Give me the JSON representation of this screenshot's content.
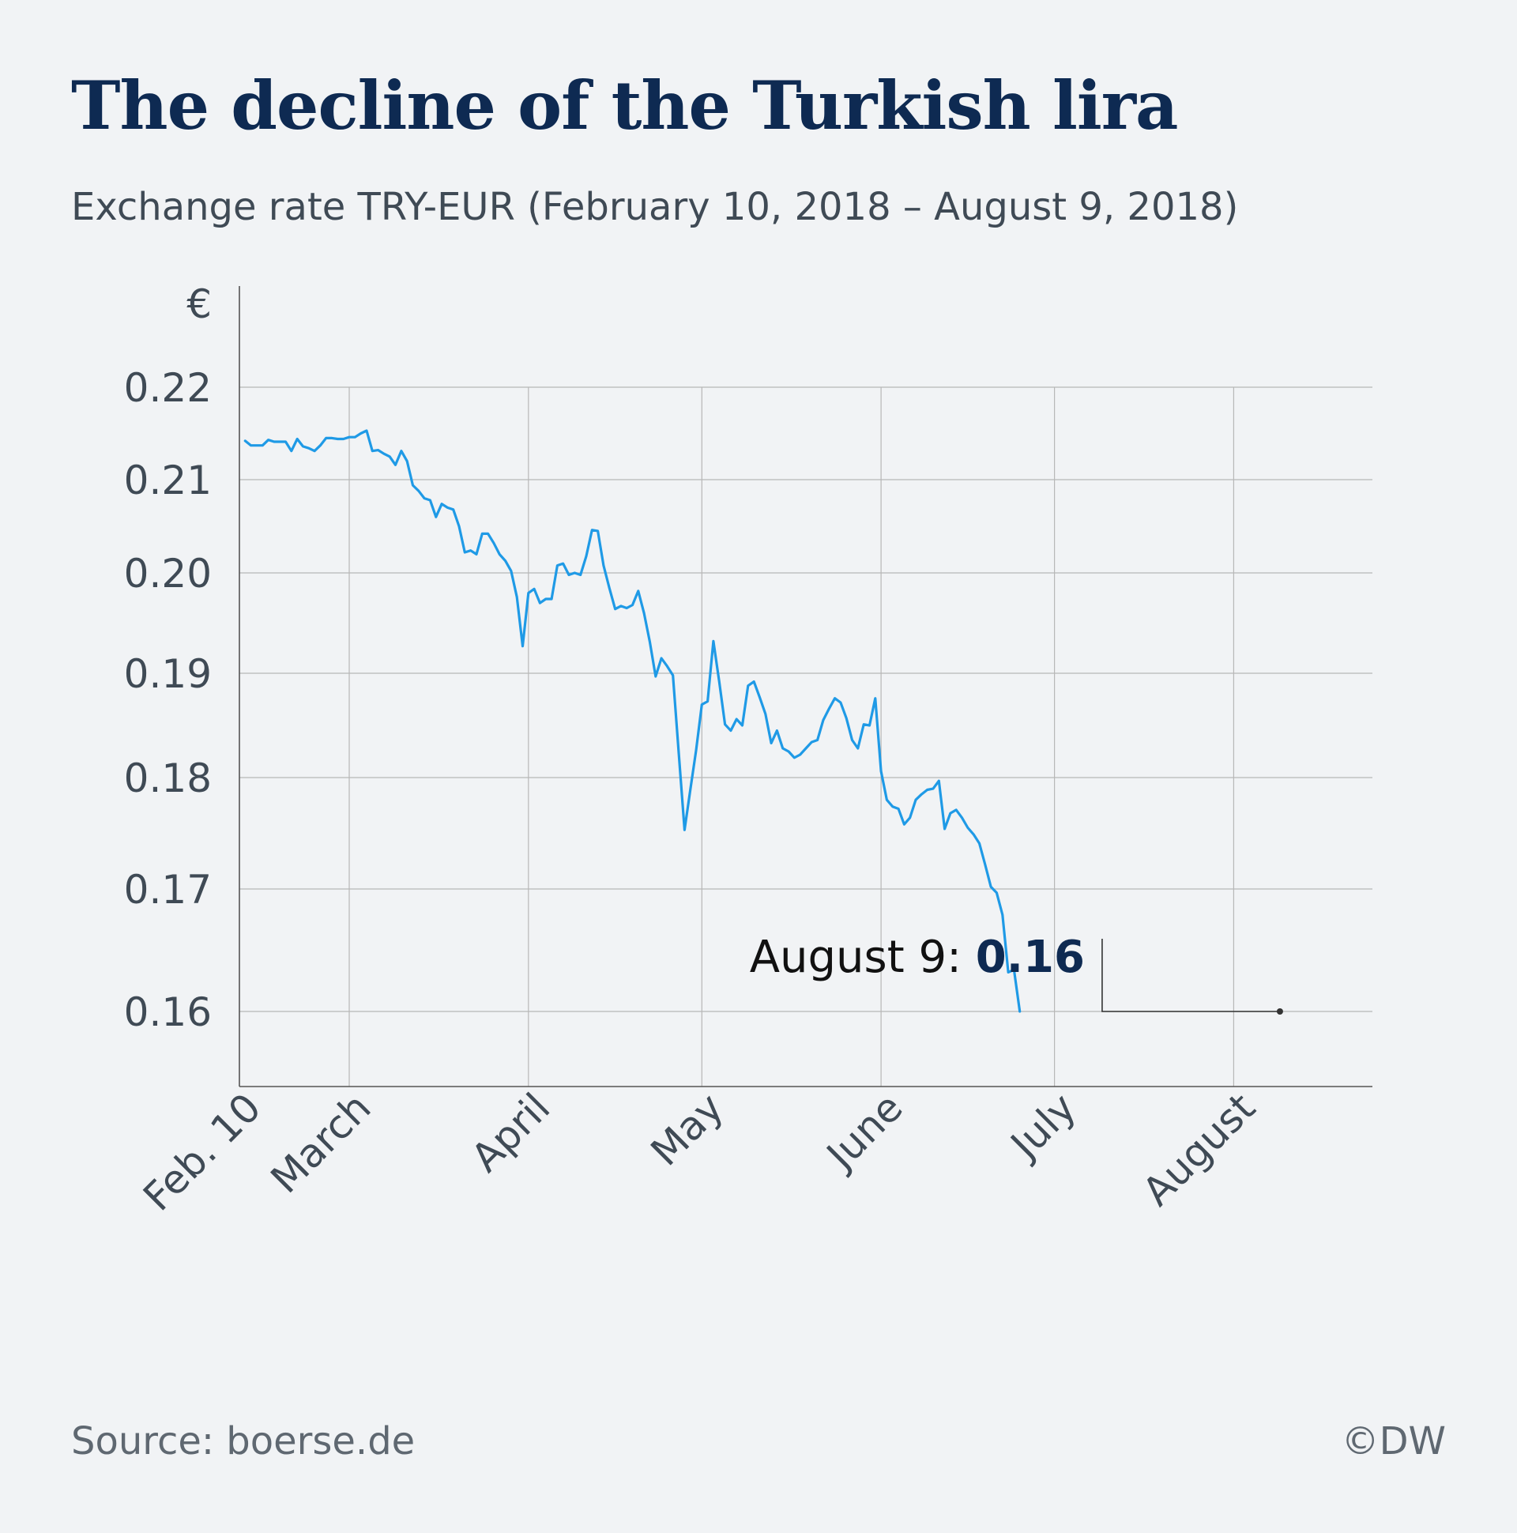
{
  "header": {
    "title": "The decline of the Turkish lira",
    "subtitle": "Exchange rate TRY-EUR (February 10, 2018 – August 9, 2018)"
  },
  "footer": {
    "source": "Source: boerse.de",
    "credit": "©DW"
  },
  "colors": {
    "line": "#1f9ae6",
    "title": "#0e2a52",
    "grid": "#b7b7b7",
    "axis": "#555555",
    "background": "#f1f3f5"
  },
  "chart_data": {
    "type": "line",
    "title": "The decline of the Turkish lira",
    "subtitle": "Exchange rate TRY-EUR (February 10, 2018 – August 9, 2018)",
    "y_unit_label": "€",
    "ylim": [
      0.154,
      0.226
    ],
    "y_ticks": [
      0.22,
      0.21,
      0.2,
      0.19,
      0.18,
      0.17,
      0.16
    ],
    "y_tick_labels": [
      "0.22",
      "0.21",
      "0.20",
      "0.19",
      "0.18",
      "0.17",
      "0.16"
    ],
    "xlim": [
      "2018-02-10",
      "2018-08-25"
    ],
    "x_ticks": [
      "2018-02-10",
      "2018-03-01",
      "2018-04-01",
      "2018-05-01",
      "2018-06-01",
      "2018-07-01",
      "2018-08-01"
    ],
    "x_tick_labels": [
      "Feb. 10",
      "March",
      "April",
      "May",
      "June",
      "July",
      "August"
    ],
    "grid": true,
    "series": [
      {
        "points": [
          [
            "2018-02-11",
            0.2142
          ],
          [
            "2018-02-12",
            0.2137
          ],
          [
            "2018-02-13",
            0.2137
          ],
          [
            "2018-02-14",
            0.2137
          ],
          [
            "2018-02-15",
            0.2143
          ],
          [
            "2018-02-16",
            0.2141
          ],
          [
            "2018-02-17",
            0.2141
          ],
          [
            "2018-02-18",
            0.2141
          ],
          [
            "2018-02-19",
            0.2131
          ],
          [
            "2018-02-20",
            0.2144
          ],
          [
            "2018-02-21",
            0.2136
          ],
          [
            "2018-02-22",
            0.2134
          ],
          [
            "2018-02-23",
            0.2131
          ],
          [
            "2018-02-24",
            0.2137
          ],
          [
            "2018-02-25",
            0.2145
          ],
          [
            "2018-02-26",
            0.2145
          ],
          [
            "2018-02-27",
            0.2144
          ],
          [
            "2018-02-28",
            0.2144
          ],
          [
            "2018-03-01",
            0.2146
          ],
          [
            "2018-03-02",
            0.2146
          ],
          [
            "2018-03-03",
            0.215
          ],
          [
            "2018-03-04",
            0.2153
          ],
          [
            "2018-03-05",
            0.2131
          ],
          [
            "2018-03-06",
            0.2132
          ],
          [
            "2018-03-07",
            0.2128
          ],
          [
            "2018-03-08",
            0.2125
          ],
          [
            "2018-03-09",
            0.2116
          ],
          [
            "2018-03-10",
            0.2131
          ],
          [
            "2018-03-11",
            0.212
          ],
          [
            "2018-03-12",
            0.2094
          ],
          [
            "2018-03-13",
            0.2088
          ],
          [
            "2018-03-14",
            0.208
          ],
          [
            "2018-03-15",
            0.2078
          ],
          [
            "2018-03-16",
            0.206
          ],
          [
            "2018-03-17",
            0.2074
          ],
          [
            "2018-03-18",
            0.207
          ],
          [
            "2018-03-19",
            0.2068
          ],
          [
            "2018-03-20",
            0.205
          ],
          [
            "2018-03-21",
            0.2022
          ],
          [
            "2018-03-22",
            0.2024
          ],
          [
            "2018-03-23",
            0.202
          ],
          [
            "2018-03-24",
            0.2042
          ],
          [
            "2018-03-25",
            0.2042
          ],
          [
            "2018-03-26",
            0.2032
          ],
          [
            "2018-03-27",
            0.202
          ],
          [
            "2018-03-28",
            0.2013
          ],
          [
            "2018-03-29",
            0.2002
          ],
          [
            "2018-03-30",
            0.1976
          ],
          [
            "2018-03-31",
            0.1927
          ],
          [
            "2018-04-01",
            0.198
          ],
          [
            "2018-04-02",
            0.1984
          ],
          [
            "2018-04-03",
            0.197
          ],
          [
            "2018-04-04",
            0.1974
          ],
          [
            "2018-04-05",
            0.1974
          ],
          [
            "2018-04-06",
            0.2008
          ],
          [
            "2018-04-07",
            0.201
          ],
          [
            "2018-04-08",
            0.1998
          ],
          [
            "2018-04-09",
            0.2
          ],
          [
            "2018-04-10",
            0.1998
          ],
          [
            "2018-04-11",
            0.2018
          ],
          [
            "2018-04-12",
            0.2046
          ],
          [
            "2018-04-13",
            0.2045
          ],
          [
            "2018-04-14",
            0.2008
          ],
          [
            "2018-04-15",
            0.1985
          ],
          [
            "2018-04-16",
            0.1964
          ],
          [
            "2018-04-17",
            0.1967
          ],
          [
            "2018-04-18",
            0.1965
          ],
          [
            "2018-04-19",
            0.1968
          ],
          [
            "2018-04-20",
            0.1982
          ],
          [
            "2018-04-21",
            0.196
          ],
          [
            "2018-04-22",
            0.1931
          ],
          [
            "2018-04-23",
            0.1897
          ],
          [
            "2018-04-24",
            0.1915
          ],
          [
            "2018-04-25",
            0.1907
          ],
          [
            "2018-04-26",
            0.1898
          ],
          [
            "2018-04-27",
            0.1824
          ],
          [
            "2018-04-28",
            0.1753
          ],
          [
            "2018-04-29",
            0.1789
          ],
          [
            "2018-04-30",
            0.1826
          ],
          [
            "2018-05-01",
            0.187
          ],
          [
            "2018-05-02",
            0.1873
          ],
          [
            "2018-05-03",
            0.1932
          ],
          [
            "2018-05-04",
            0.1892
          ],
          [
            "2018-05-05",
            0.1851
          ],
          [
            "2018-05-06",
            0.1845
          ],
          [
            "2018-05-07",
            0.1856
          ],
          [
            "2018-05-08",
            0.185
          ],
          [
            "2018-05-09",
            0.1888
          ],
          [
            "2018-05-10",
            0.1892
          ],
          [
            "2018-05-11",
            0.1877
          ],
          [
            "2018-05-12",
            0.1861
          ],
          [
            "2018-05-13",
            0.1833
          ],
          [
            "2018-05-14",
            0.1845
          ],
          [
            "2018-05-15",
            0.1828
          ],
          [
            "2018-05-16",
            0.1825
          ],
          [
            "2018-05-17",
            0.1819
          ],
          [
            "2018-05-18",
            0.1822
          ],
          [
            "2018-05-19",
            0.1828
          ],
          [
            "2018-05-20",
            0.1834
          ],
          [
            "2018-05-21",
            0.1836
          ],
          [
            "2018-05-22",
            0.1855
          ],
          [
            "2018-05-23",
            0.1866
          ],
          [
            "2018-05-24",
            0.1876
          ],
          [
            "2018-05-25",
            0.1872
          ],
          [
            "2018-05-26",
            0.1857
          ],
          [
            "2018-05-27",
            0.1836
          ],
          [
            "2018-05-28",
            0.1828
          ],
          [
            "2018-05-29",
            0.1851
          ],
          [
            "2018-05-30",
            0.185
          ],
          [
            "2018-05-31",
            0.1876
          ],
          [
            "2018-06-01",
            0.1806
          ],
          [
            "2018-06-02",
            0.178
          ],
          [
            "2018-06-03",
            0.1774
          ],
          [
            "2018-06-04",
            0.1772
          ],
          [
            "2018-06-05",
            0.1758
          ],
          [
            "2018-06-06",
            0.1764
          ],
          [
            "2018-06-07",
            0.178
          ],
          [
            "2018-06-08",
            0.1785
          ],
          [
            "2018-06-09",
            0.1789
          ],
          [
            "2018-06-10",
            0.179
          ],
          [
            "2018-06-11",
            0.1797
          ],
          [
            "2018-06-12",
            0.1754
          ],
          [
            "2018-06-13",
            0.1768
          ],
          [
            "2018-06-14",
            0.1771
          ],
          [
            "2018-06-15",
            0.1764
          ],
          [
            "2018-06-16",
            0.1755
          ],
          [
            "2018-06-17",
            0.1749
          ],
          [
            "2018-06-18",
            0.1741
          ],
          [
            "2018-06-19",
            0.1722
          ],
          [
            "2018-06-20",
            0.1702
          ],
          [
            "2018-06-21",
            0.1697
          ],
          [
            "2018-06-22",
            0.1679
          ],
          [
            "2018-06-23",
            0.1632
          ],
          [
            "2018-06-24",
            0.1634
          ],
          [
            "2018-06-25",
            0.16
          ]
        ]
      }
    ],
    "annotation": {
      "label": "August 9: ",
      "value_text": "0.16",
      "date": "2018-08-09",
      "value": 0.16
    }
  }
}
